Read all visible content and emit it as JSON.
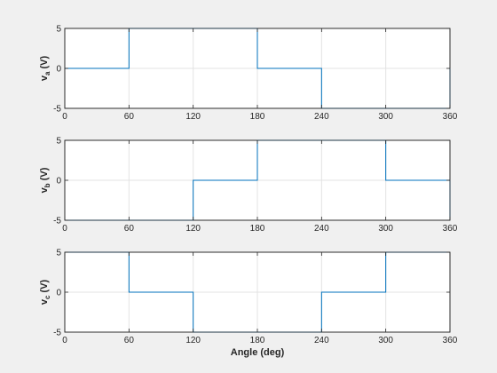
{
  "figure": {
    "background": "#f0f0f0"
  },
  "chart_data": [
    {
      "type": "line",
      "ylabel_main": "v",
      "ylabel_sub": "a",
      "ylabel_unit": " (V)",
      "xlabel": "",
      "xlim": [
        0,
        360
      ],
      "ylim": [
        -5,
        5
      ],
      "xticks": [
        0,
        60,
        120,
        180,
        240,
        300,
        360
      ],
      "yticks": [
        -5,
        0,
        5
      ],
      "grid": true,
      "color": "#0072bd",
      "series": [
        {
          "x": [
            0,
            60,
            60,
            180,
            180,
            240,
            240,
            360,
            360
          ],
          "y": [
            0,
            0,
            5,
            5,
            0,
            0,
            -5,
            -5,
            0
          ]
        }
      ]
    },
    {
      "type": "line",
      "ylabel_main": "v",
      "ylabel_sub": "b",
      "ylabel_unit": " (V)",
      "xlabel": "",
      "xlim": [
        0,
        360
      ],
      "ylim": [
        -5,
        5
      ],
      "xticks": [
        0,
        60,
        120,
        180,
        240,
        300,
        360
      ],
      "yticks": [
        -5,
        0,
        5
      ],
      "grid": true,
      "color": "#0072bd",
      "series": [
        {
          "x": [
            0,
            120,
            120,
            180,
            180,
            300,
            300,
            360,
            360
          ],
          "y": [
            -5,
            -5,
            0,
            0,
            5,
            5,
            0,
            0,
            -5
          ]
        }
      ]
    },
    {
      "type": "line",
      "ylabel_main": "v",
      "ylabel_sub": "c",
      "ylabel_unit": " (V)",
      "xlabel": "Angle (deg)",
      "xlim": [
        0,
        360
      ],
      "ylim": [
        -5,
        5
      ],
      "xticks": [
        0,
        60,
        120,
        180,
        240,
        300,
        360
      ],
      "yticks": [
        -5,
        0,
        5
      ],
      "grid": true,
      "color": "#0072bd",
      "series": [
        {
          "x": [
            0,
            60,
            60,
            120,
            120,
            240,
            240,
            300,
            300,
            360
          ],
          "y": [
            5,
            5,
            0,
            0,
            -5,
            -5,
            0,
            0,
            5,
            5
          ]
        }
      ]
    }
  ]
}
